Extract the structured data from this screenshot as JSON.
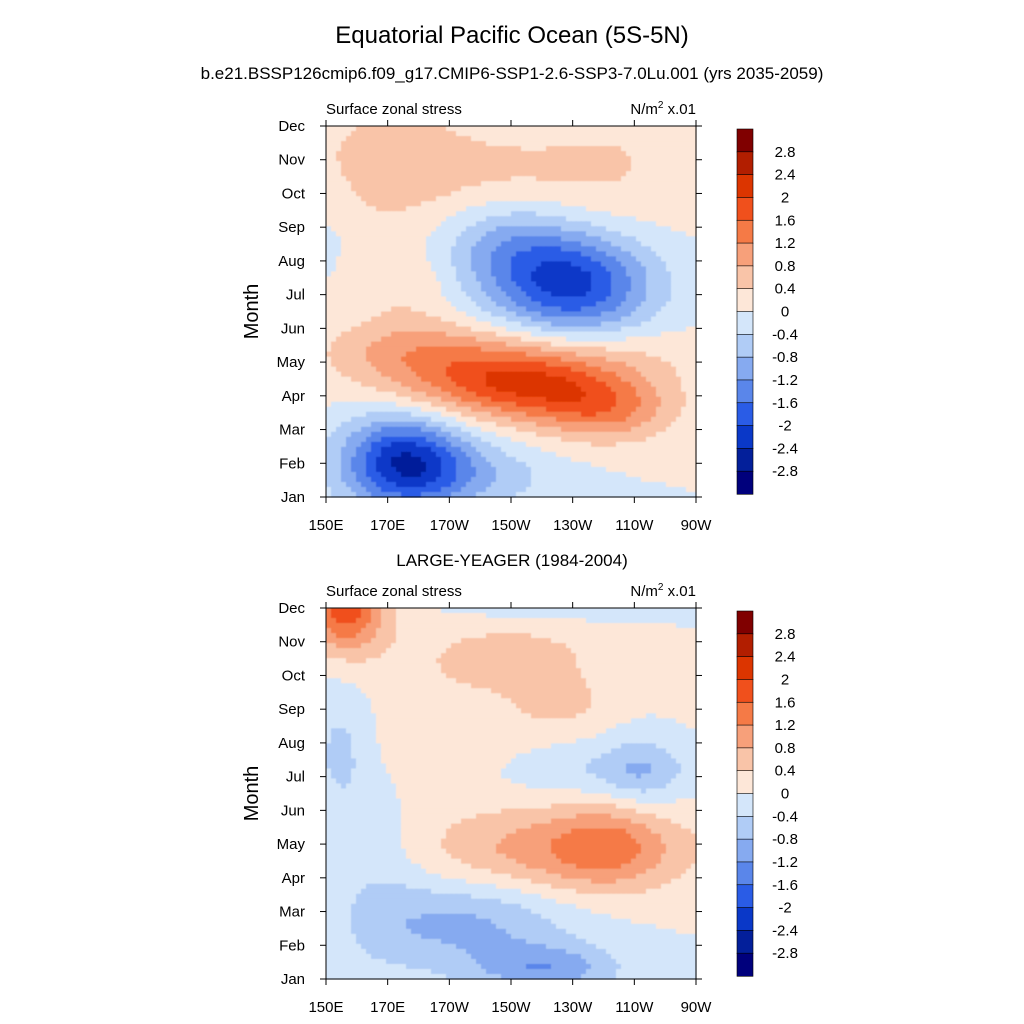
{
  "page": {
    "title": "Equatorial Pacific Ocean (5S-5N)",
    "subtitle": "b.e21.BSSP126cmip6.f09_g17.CMIP6-SSP1-2.6-SSP3-7.0Lu.001 (yrs 2035-2059)"
  },
  "chart_data": [
    {
      "type": "heatmap",
      "title": "",
      "left_label": "Surface zonal stress",
      "units_base": "N/m",
      "units_exp": "2",
      "units_scale": " x.01",
      "xlabel": "",
      "ylabel": "Month",
      "x_ticks": [
        "150E",
        "170E",
        "170W",
        "150W",
        "130W",
        "110W",
        "90W"
      ],
      "y_ticks": [
        "Jan",
        "Feb",
        "Mar",
        "Apr",
        "May",
        "Jun",
        "Jul",
        "Aug",
        "Sep",
        "Oct",
        "Nov",
        "Dec"
      ],
      "x_degrees_east": [
        150,
        170,
        190,
        210,
        230,
        250,
        270
      ],
      "features": [
        {
          "lon": 175,
          "month": 1.1,
          "sx": 14,
          "sy": 1.0,
          "amp": -2.2
        },
        {
          "lon": 195,
          "month": 0.6,
          "sx": 20,
          "sy": 0.7,
          "amp": -0.7
        },
        {
          "lon": 178,
          "month": 3.0,
          "sx": 18,
          "sy": 0.8,
          "amp": 0.25
        },
        {
          "lon": 212,
          "month": 3.3,
          "sx": 22,
          "sy": 0.7,
          "amp": 1.7
        },
        {
          "lon": 240,
          "month": 2.6,
          "sx": 16,
          "sy": 0.7,
          "amp": 1.2
        },
        {
          "lon": 215,
          "month": 4.2,
          "sx": 35,
          "sy": 0.7,
          "amp": 0.7
        },
        {
          "lon": 175,
          "month": 4.4,
          "sx": 18,
          "sy": 0.7,
          "amp": 0.6
        },
        {
          "lon": 230,
          "month": 6.3,
          "sx": 18,
          "sy": 1.1,
          "amp": -2.1
        },
        {
          "lon": 208,
          "month": 7.5,
          "sx": 16,
          "sy": 1.0,
          "amp": -0.9
        },
        {
          "lon": 176,
          "month": 6.3,
          "sx": 12,
          "sy": 0.8,
          "amp": 0.35
        },
        {
          "lon": 152,
          "month": 8.3,
          "sx": 6,
          "sy": 1.2,
          "amp": -0.2
        },
        {
          "lon": 172,
          "month": 9.8,
          "sx": 24,
          "sy": 1.4,
          "amp": 0.6
        },
        {
          "lon": 230,
          "month": 9.8,
          "sx": 30,
          "sy": 1.6,
          "amp": 0.5
        },
        {
          "lon": 215,
          "month": 11.0,
          "sx": 16,
          "sy": 0.45,
          "amp": -0.35
        }
      ]
    },
    {
      "type": "heatmap",
      "title": "LARGE-YEAGER (1984-2004)",
      "left_label": "Surface zonal stress",
      "units_base": "N/m",
      "units_exp": "2",
      "units_scale": " x.01",
      "xlabel": "",
      "ylabel": "Month",
      "x_ticks": [
        "150E",
        "170E",
        "170W",
        "150W",
        "130W",
        "110W",
        "90W"
      ],
      "y_ticks": [
        "Jan",
        "Feb",
        "Mar",
        "Apr",
        "May",
        "Jun",
        "Jul",
        "Aug",
        "Sep",
        "Oct",
        "Nov",
        "Dec"
      ],
      "x_degrees_east": [
        150,
        170,
        190,
        210,
        230,
        250,
        270
      ],
      "features": [
        {
          "lon": 156,
          "month": 11.0,
          "sx": 9,
          "sy": 0.9,
          "amp": 1.8
        },
        {
          "lon": 212,
          "month": 9.5,
          "sx": 22,
          "sy": 0.9,
          "amp": 0.55
        },
        {
          "lon": 226,
          "month": 8.2,
          "sx": 10,
          "sy": 0.5,
          "amp": 0.4
        },
        {
          "lon": 227,
          "month": 3.8,
          "sx": 30,
          "sy": 0.9,
          "amp": 1.1
        },
        {
          "lon": 242,
          "month": 4.0,
          "sx": 12,
          "sy": 0.9,
          "amp": 0.6
        },
        {
          "lon": 240,
          "month": 6.2,
          "sx": 24,
          "sy": 0.6,
          "amp": -0.55
        },
        {
          "lon": 252,
          "month": 6.2,
          "sx": 8,
          "sy": 0.8,
          "amp": -0.5
        },
        {
          "lon": 155,
          "month": 6.8,
          "sx": 8,
          "sy": 1.4,
          "amp": -0.6
        },
        {
          "lon": 195,
          "month": 1.6,
          "sx": 24,
          "sy": 1.0,
          "amp": -0.9
        },
        {
          "lon": 222,
          "month": 0.3,
          "sx": 16,
          "sy": 0.5,
          "amp": -1.0
        },
        {
          "lon": 168,
          "month": 3.2,
          "sx": 10,
          "sy": 2.0,
          "amp": -0.3
        },
        {
          "lon": 222,
          "month": 11.3,
          "sx": 24,
          "sy": 0.4,
          "amp": -0.7
        },
        {
          "lon": 205,
          "month": 6.8,
          "sx": 40,
          "sy": 1.0,
          "amp": 0.2
        },
        {
          "lon": 175,
          "month": 8.5,
          "sx": 18,
          "sy": 2.5,
          "amp": 0.15
        }
      ]
    }
  ],
  "colorbar": {
    "levels": [
      "2.8",
      "2.4",
      "2",
      "1.6",
      "1.2",
      "0.8",
      "0.4",
      "0",
      "-0.4",
      "-0.8",
      "-1.2",
      "-1.6",
      "-2",
      "-2.4",
      "-2.8"
    ],
    "level_values": [
      2.8,
      2.4,
      2.0,
      1.6,
      1.2,
      0.8,
      0.4,
      0.0,
      -0.4,
      -0.8,
      -1.2,
      -1.6,
      -2.0,
      -2.4,
      -2.8
    ],
    "colors_top_to_bottom": [
      "#800000",
      "#b21e00",
      "#dc3500",
      "#f0501c",
      "#f57a46",
      "#f7a07a",
      "#f9c4a8",
      "#fde7d8",
      "#d4e6fa",
      "#b0ccf6",
      "#86aaf0",
      "#5a86ea",
      "#2a5ce6",
      "#0a38c8",
      "#031f9a",
      "#00007c"
    ]
  }
}
